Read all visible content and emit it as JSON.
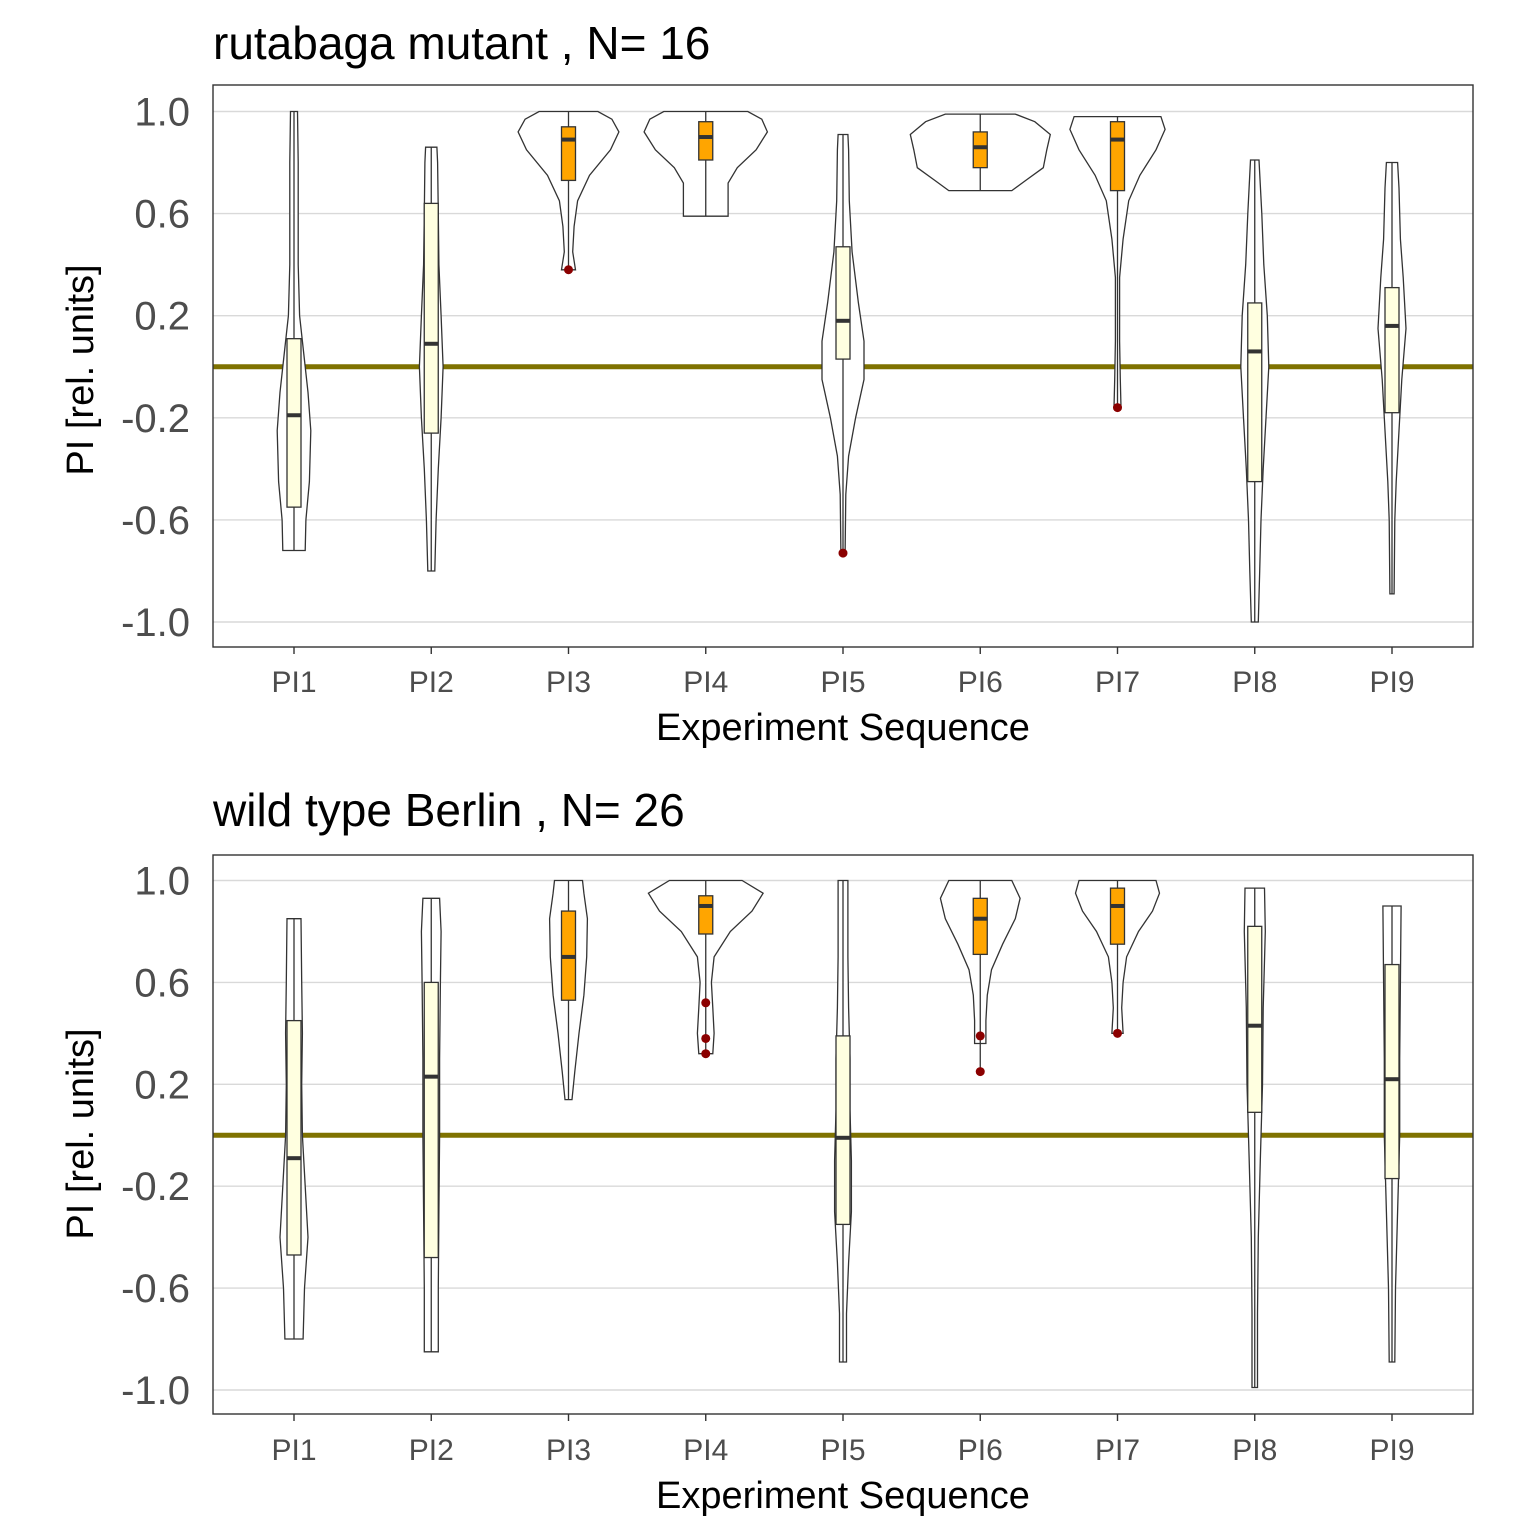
{
  "colors": {
    "reference_line": "#7f7200",
    "box_learning": "#ffa500",
    "box_test": "#ffffe0",
    "outlier": "#8b0000"
  },
  "chart_data": [
    {
      "type": "violin",
      "title": "rutabaga mutant , N= 16",
      "xlabel": "Experiment Sequence",
      "ylabel": "PI [rel. units]",
      "ylim": [
        -1.1,
        1.1
      ],
      "yticks": [
        "1.0",
        "0.6",
        "0.2",
        "-0.2",
        "-0.6",
        "-1.0"
      ],
      "categories": [
        "PI1",
        "PI2",
        "PI3",
        "PI4",
        "PI5",
        "PI6",
        "PI7",
        "PI8",
        "PI9"
      ],
      "reference_line": 0,
      "grid": true,
      "groups": [
        {
          "category": "PI1",
          "box_color": "test",
          "min": -0.72,
          "q1": -0.55,
          "median": -0.19,
          "q3": 0.11,
          "max": 1.0,
          "outliers": [],
          "violin_halfwidth": [
            [
              -0.72,
              0.16
            ],
            [
              -0.6,
              0.17
            ],
            [
              -0.45,
              0.22
            ],
            [
              -0.25,
              0.24
            ],
            [
              -0.1,
              0.2
            ],
            [
              0.05,
              0.14
            ],
            [
              0.2,
              0.08
            ],
            [
              0.4,
              0.06
            ],
            [
              0.6,
              0.06
            ],
            [
              0.8,
              0.06
            ],
            [
              1.0,
              0.05
            ]
          ]
        },
        {
          "category": "PI2",
          "box_color": "test",
          "min": -0.8,
          "q1": -0.26,
          "median": 0.09,
          "q3": 0.64,
          "max": 0.86,
          "outliers": [],
          "violin_halfwidth": [
            [
              -0.8,
              0.05
            ],
            [
              -0.6,
              0.07
            ],
            [
              -0.4,
              0.1
            ],
            [
              -0.2,
              0.14
            ],
            [
              0.0,
              0.17
            ],
            [
              0.2,
              0.14
            ],
            [
              0.4,
              0.11
            ],
            [
              0.6,
              0.1
            ],
            [
              0.8,
              0.09
            ],
            [
              0.86,
              0.08
            ]
          ]
        },
        {
          "category": "PI3",
          "box_color": "learning",
          "min": 0.38,
          "q1": 0.73,
          "median": 0.89,
          "q3": 0.94,
          "max": 1.0,
          "outliers": [
            0.38
          ],
          "violin_halfwidth": [
            [
              0.38,
              0.1
            ],
            [
              0.45,
              0.06
            ],
            [
              0.55,
              0.08
            ],
            [
              0.65,
              0.13
            ],
            [
              0.75,
              0.3
            ],
            [
              0.85,
              0.6
            ],
            [
              0.92,
              0.72
            ],
            [
              0.97,
              0.62
            ],
            [
              1.0,
              0.42
            ]
          ]
        },
        {
          "category": "PI4",
          "box_color": "learning",
          "min": 0.59,
          "q1": 0.81,
          "median": 0.9,
          "q3": 0.96,
          "max": 1.0,
          "outliers": [],
          "violin_halfwidth": [
            [
              0.59,
              0.32
            ],
            [
              0.65,
              0.32
            ],
            [
              0.72,
              0.32
            ],
            [
              0.78,
              0.45
            ],
            [
              0.85,
              0.72
            ],
            [
              0.92,
              0.88
            ],
            [
              0.97,
              0.8
            ],
            [
              1.0,
              0.6
            ]
          ]
        },
        {
          "category": "PI5",
          "box_color": "test",
          "min": -0.73,
          "q1": 0.03,
          "median": 0.18,
          "q3": 0.47,
          "max": 0.91,
          "outliers": [
            -0.73
          ],
          "violin_halfwidth": [
            [
              -0.73,
              0.03
            ],
            [
              -0.5,
              0.04
            ],
            [
              -0.35,
              0.08
            ],
            [
              -0.2,
              0.18
            ],
            [
              -0.05,
              0.3
            ],
            [
              0.1,
              0.3
            ],
            [
              0.25,
              0.22
            ],
            [
              0.45,
              0.13
            ],
            [
              0.65,
              0.09
            ],
            [
              0.85,
              0.08
            ],
            [
              0.91,
              0.07
            ]
          ]
        },
        {
          "category": "PI6",
          "box_color": "learning",
          "min": 0.69,
          "q1": 0.78,
          "median": 0.86,
          "q3": 0.92,
          "max": 0.99,
          "outliers": [],
          "violin_halfwidth": [
            [
              0.69,
              0.45
            ],
            [
              0.73,
              0.65
            ],
            [
              0.78,
              0.9
            ],
            [
              0.85,
              0.95
            ],
            [
              0.91,
              1.0
            ],
            [
              0.96,
              0.78
            ],
            [
              0.99,
              0.5
            ]
          ]
        },
        {
          "category": "PI7",
          "box_color": "learning",
          "min": -0.16,
          "q1": 0.69,
          "median": 0.89,
          "q3": 0.96,
          "max": 0.98,
          "outliers": [
            -0.16
          ],
          "violin_halfwidth": [
            [
              -0.16,
              0.05
            ],
            [
              -0.05,
              0.04
            ],
            [
              0.1,
              0.03
            ],
            [
              0.35,
              0.03
            ],
            [
              0.5,
              0.08
            ],
            [
              0.65,
              0.16
            ],
            [
              0.75,
              0.32
            ],
            [
              0.85,
              0.55
            ],
            [
              0.93,
              0.68
            ],
            [
              0.98,
              0.62
            ]
          ]
        },
        {
          "category": "PI8",
          "box_color": "test",
          "min": -1.0,
          "q1": -0.45,
          "median": 0.06,
          "q3": 0.25,
          "max": 0.81,
          "outliers": [],
          "violin_halfwidth": [
            [
              -1.0,
              0.05
            ],
            [
              -0.8,
              0.07
            ],
            [
              -0.6,
              0.09
            ],
            [
              -0.4,
              0.12
            ],
            [
              -0.2,
              0.16
            ],
            [
              0.0,
              0.2
            ],
            [
              0.2,
              0.18
            ],
            [
              0.4,
              0.13
            ],
            [
              0.6,
              0.1
            ],
            [
              0.81,
              0.06
            ]
          ]
        },
        {
          "category": "PI9",
          "box_color": "test",
          "min": -0.89,
          "q1": -0.18,
          "median": 0.16,
          "q3": 0.31,
          "max": 0.8,
          "outliers": [],
          "violin_halfwidth": [
            [
              -0.89,
              0.03
            ],
            [
              -0.6,
              0.04
            ],
            [
              -0.45,
              0.06
            ],
            [
              -0.25,
              0.1
            ],
            [
              -0.05,
              0.14
            ],
            [
              0.15,
              0.2
            ],
            [
              0.35,
              0.16
            ],
            [
              0.5,
              0.12
            ],
            [
              0.7,
              0.1
            ],
            [
              0.8,
              0.08
            ]
          ]
        }
      ]
    },
    {
      "type": "violin",
      "title": "wild type Berlin , N= 26",
      "xlabel": "Experiment Sequence",
      "ylabel": "PI [rel. units]",
      "ylim": [
        -1.1,
        1.1
      ],
      "yticks": [
        "1.0",
        "0.6",
        "0.2",
        "-0.2",
        "-0.6",
        "-1.0"
      ],
      "categories": [
        "PI1",
        "PI2",
        "PI3",
        "PI4",
        "PI5",
        "PI6",
        "PI7",
        "PI8",
        "PI9"
      ],
      "reference_line": 0,
      "grid": true,
      "groups": [
        {
          "category": "PI1",
          "box_color": "test",
          "min": -0.8,
          "q1": -0.47,
          "median": -0.09,
          "q3": 0.45,
          "max": 0.85,
          "outliers": [],
          "violin_halfwidth": [
            [
              -0.8,
              0.13
            ],
            [
              -0.6,
              0.15
            ],
            [
              -0.4,
              0.2
            ],
            [
              -0.2,
              0.16
            ],
            [
              0.0,
              0.12
            ],
            [
              0.2,
              0.11
            ],
            [
              0.4,
              0.12
            ],
            [
              0.6,
              0.11
            ],
            [
              0.85,
              0.1
            ]
          ]
        },
        {
          "category": "PI2",
          "box_color": "test",
          "min": -0.85,
          "q1": -0.48,
          "median": 0.23,
          "q3": 0.6,
          "max": 0.93,
          "outliers": [],
          "violin_halfwidth": [
            [
              -0.85,
              0.1
            ],
            [
              -0.6,
              0.1
            ],
            [
              -0.3,
              0.11
            ],
            [
              0.0,
              0.12
            ],
            [
              0.3,
              0.12
            ],
            [
              0.6,
              0.13
            ],
            [
              0.8,
              0.14
            ],
            [
              0.93,
              0.12
            ]
          ]
        },
        {
          "category": "PI3",
          "box_color": "learning",
          "min": 0.14,
          "q1": 0.53,
          "median": 0.7,
          "q3": 0.88,
          "max": 1.0,
          "outliers": [],
          "violin_halfwidth": [
            [
              0.14,
              0.05
            ],
            [
              0.25,
              0.09
            ],
            [
              0.4,
              0.15
            ],
            [
              0.55,
              0.22
            ],
            [
              0.7,
              0.26
            ],
            [
              0.85,
              0.27
            ],
            [
              0.95,
              0.22
            ],
            [
              1.0,
              0.2
            ]
          ]
        },
        {
          "category": "PI4",
          "box_color": "learning",
          "min": 0.32,
          "q1": 0.79,
          "median": 0.9,
          "q3": 0.94,
          "max": 1.0,
          "outliers": [
            0.52,
            0.38,
            0.32
          ],
          "violin_halfwidth": [
            [
              0.32,
              0.1
            ],
            [
              0.4,
              0.12
            ],
            [
              0.5,
              0.1
            ],
            [
              0.6,
              0.08
            ],
            [
              0.7,
              0.12
            ],
            [
              0.8,
              0.35
            ],
            [
              0.88,
              0.66
            ],
            [
              0.95,
              0.82
            ],
            [
              1.0,
              0.52
            ]
          ]
        },
        {
          "category": "PI5",
          "box_color": "test",
          "min": -0.89,
          "q1": -0.35,
          "median": -0.01,
          "q3": 0.39,
          "max": 1.0,
          "outliers": [],
          "violin_halfwidth": [
            [
              -0.89,
              0.05
            ],
            [
              -0.7,
              0.05
            ],
            [
              -0.5,
              0.08
            ],
            [
              -0.3,
              0.12
            ],
            [
              -0.1,
              0.12
            ],
            [
              0.1,
              0.1
            ],
            [
              0.3,
              0.1
            ],
            [
              0.5,
              0.08
            ],
            [
              0.7,
              0.07
            ],
            [
              0.9,
              0.07
            ],
            [
              1.0,
              0.07
            ]
          ]
        },
        {
          "category": "PI6",
          "box_color": "learning",
          "min": 0.25,
          "q1": 0.71,
          "median": 0.85,
          "q3": 0.93,
          "max": 1.0,
          "outliers": [
            0.39,
            0.25
          ],
          "violin_halfwidth": [
            [
              0.36,
              0.08
            ],
            [
              0.45,
              0.08
            ],
            [
              0.55,
              0.1
            ],
            [
              0.65,
              0.16
            ],
            [
              0.75,
              0.32
            ],
            [
              0.85,
              0.5
            ],
            [
              0.93,
              0.57
            ],
            [
              1.0,
              0.45
            ]
          ]
        },
        {
          "category": "PI7",
          "box_color": "learning",
          "min": 0.4,
          "q1": 0.75,
          "median": 0.9,
          "q3": 0.97,
          "max": 1.0,
          "outliers": [
            0.4
          ],
          "violin_halfwidth": [
            [
              0.4,
              0.08
            ],
            [
              0.5,
              0.06
            ],
            [
              0.6,
              0.08
            ],
            [
              0.7,
              0.13
            ],
            [
              0.8,
              0.3
            ],
            [
              0.88,
              0.5
            ],
            [
              0.95,
              0.6
            ],
            [
              1.0,
              0.55
            ]
          ]
        },
        {
          "category": "PI8",
          "box_color": "test",
          "min": -0.99,
          "q1": 0.09,
          "median": 0.43,
          "q3": 0.82,
          "max": 0.97,
          "outliers": [],
          "violin_halfwidth": [
            [
              -0.99,
              0.04
            ],
            [
              -0.7,
              0.04
            ],
            [
              -0.4,
              0.05
            ],
            [
              -0.1,
              0.08
            ],
            [
              0.2,
              0.11
            ],
            [
              0.5,
              0.12
            ],
            [
              0.8,
              0.15
            ],
            [
              0.97,
              0.14
            ]
          ]
        },
        {
          "category": "PI9",
          "box_color": "test",
          "min": -0.89,
          "q1": -0.17,
          "median": 0.22,
          "q3": 0.67,
          "max": 0.9,
          "outliers": [],
          "violin_halfwidth": [
            [
              -0.89,
              0.04
            ],
            [
              -0.6,
              0.05
            ],
            [
              -0.3,
              0.08
            ],
            [
              0.0,
              0.11
            ],
            [
              0.3,
              0.11
            ],
            [
              0.6,
              0.12
            ],
            [
              0.9,
              0.13
            ]
          ]
        }
      ]
    }
  ]
}
